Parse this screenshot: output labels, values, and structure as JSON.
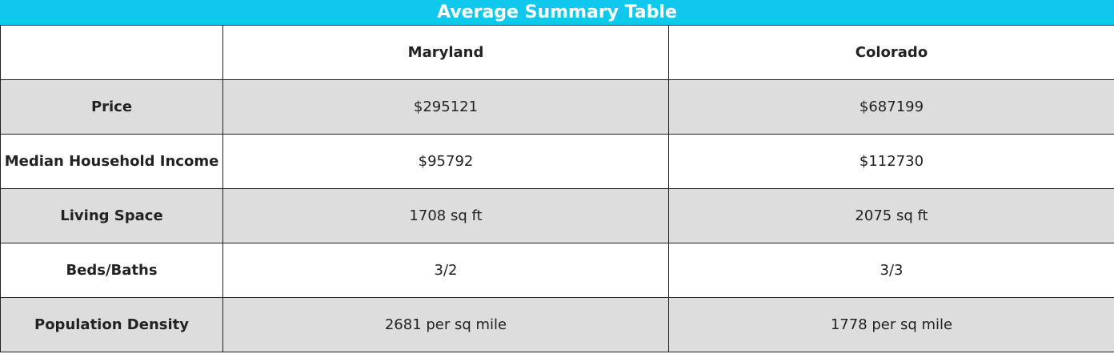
{
  "title": "Average Summary Table",
  "columns": [
    "",
    "Maryland",
    "Colorado"
  ],
  "rows": [
    {
      "label": "Price",
      "values": [
        "$295121",
        "$687199"
      ]
    },
    {
      "label": "Median Household Income",
      "values": [
        "$95792",
        "$112730"
      ]
    },
    {
      "label": "Living Space",
      "values": [
        "1708 sq ft",
        "2075 sq ft"
      ]
    },
    {
      "label": "Beds/Baths",
      "values": [
        "3/2",
        "3/3"
      ]
    },
    {
      "label": "Population Density",
      "values": [
        "2681 per sq mile",
        "1778 per sq mile"
      ]
    }
  ],
  "colors": {
    "title_bar": "#10c8ee",
    "shaded_row": "#dddddd",
    "border": "#222222"
  }
}
